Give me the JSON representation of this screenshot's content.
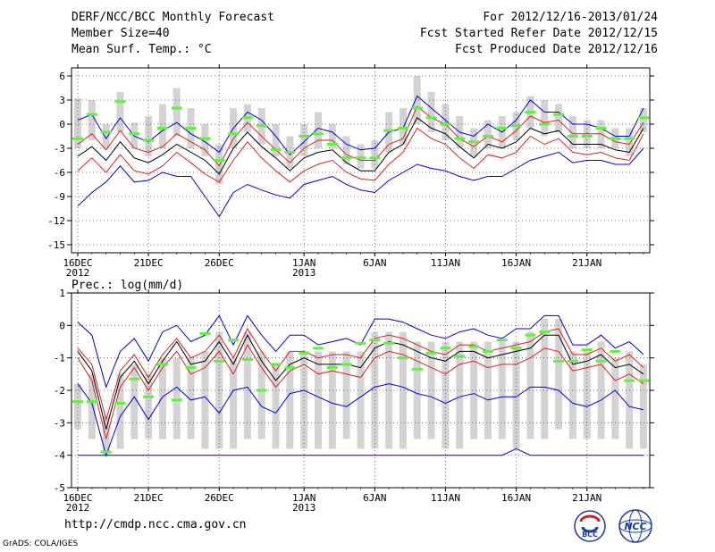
{
  "header": {
    "left": [
      "DERF/NCC/BCC Monthly Forecast",
      "Member Size=40",
      "Mean Surf. Temp.: °C"
    ],
    "right": [
      "For 2012/12/16-2013/01/24",
      "Fcst Started Refer Date 2012/12/15",
      "Fcst Produced Date 2012/12/16"
    ]
  },
  "footer": {
    "url": "http://cmdp.ncc.cma.gov.cn",
    "credit": "GrADS: COLA/IGES",
    "logo_left_label": "BCC",
    "logo_right_label": "NCC"
  },
  "colors": {
    "mean": "#000000",
    "spread": "#dd2222",
    "extreme": "#0000dd",
    "box": "#d3d3d3",
    "obs": "#66ee44"
  },
  "chart_data": [
    {
      "type": "line",
      "title": "Mean Surf. Temp.: °C",
      "ylim": [
        -16,
        7
      ],
      "yticks": [
        6,
        3,
        0,
        -3,
        -6,
        -9,
        -12,
        -15
      ],
      "xticks": [
        {
          "day": 0,
          "label": "16DEC",
          "sub": "2012"
        },
        {
          "day": 5,
          "label": "21DEC",
          "sub": ""
        },
        {
          "day": 10,
          "label": "26DEC",
          "sub": ""
        },
        {
          "day": 16,
          "label": "1JAN",
          "sub": "2013"
        },
        {
          "day": 21,
          "label": "6JAN",
          "sub": ""
        },
        {
          "day": 26,
          "label": "11JAN",
          "sub": ""
        },
        {
          "day": 31,
          "label": "16JAN",
          "sub": ""
        },
        {
          "day": 36,
          "label": "21JAN",
          "sub": ""
        }
      ],
      "series": [
        {
          "name": "max",
          "values": [
            0.5,
            1.2,
            -1.8,
            0.8,
            -1.5,
            -2.2,
            -0.8,
            0.2,
            -1.2,
            -2.2,
            -3.5,
            -0.5,
            1.5,
            0.5,
            -1.5,
            -3.8,
            -2.2,
            -0.5,
            -1.0,
            -2.5,
            -3.2,
            -3.0,
            -1.0,
            -0.5,
            3.5,
            2.0,
            0.5,
            -1.0,
            -1.5,
            0.0,
            -1.0,
            0.5,
            3.0,
            1.5,
            1.5,
            0.0,
            0.0,
            -0.5,
            -1.5,
            -1.5,
            2.0
          ]
        },
        {
          "name": "upper",
          "values": [
            -2.5,
            -1.2,
            -3.2,
            -0.8,
            -3.0,
            -3.5,
            -2.8,
            -1.2,
            -2.2,
            -3.2,
            -5.2,
            -1.8,
            0.2,
            -1.5,
            -3.2,
            -4.8,
            -3.0,
            -2.0,
            -2.0,
            -3.8,
            -4.5,
            -4.5,
            -2.5,
            -1.8,
            2.2,
            0.8,
            0.0,
            -1.8,
            -2.8,
            -1.5,
            -2.2,
            -0.8,
            1.0,
            0.2,
            0.5,
            -1.2,
            -1.2,
            -1.2,
            -2.2,
            -2.5,
            0.2
          ]
        },
        {
          "name": "mean",
          "values": [
            -4.0,
            -2.8,
            -4.5,
            -2.2,
            -4.2,
            -4.8,
            -3.8,
            -2.5,
            -3.5,
            -4.5,
            -6.2,
            -3.0,
            -1.0,
            -2.8,
            -4.2,
            -5.8,
            -4.2,
            -3.5,
            -3.2,
            -4.8,
            -5.8,
            -5.8,
            -3.5,
            -2.5,
            0.8,
            -0.5,
            -1.2,
            -2.8,
            -4.2,
            -2.5,
            -3.0,
            -2.2,
            -0.5,
            -1.2,
            -0.8,
            -2.5,
            -2.5,
            -2.5,
            -3.2,
            -3.5,
            -0.5
          ]
        },
        {
          "name": "lower",
          "values": [
            -5.8,
            -4.2,
            -6.0,
            -3.8,
            -5.8,
            -6.2,
            -5.2,
            -3.5,
            -4.8,
            -6.2,
            -7.2,
            -4.5,
            -2.2,
            -4.2,
            -5.8,
            -7.2,
            -5.8,
            -5.0,
            -4.5,
            -6.0,
            -6.8,
            -7.0,
            -5.0,
            -3.5,
            -0.5,
            -1.8,
            -2.5,
            -4.2,
            -5.5,
            -3.8,
            -4.2,
            -3.5,
            -1.5,
            -2.5,
            -1.8,
            -3.5,
            -3.8,
            -3.5,
            -4.2,
            -4.5,
            -1.2
          ]
        },
        {
          "name": "min",
          "values": [
            -10.2,
            -8.5,
            -7.2,
            -5.2,
            -7.2,
            -7.0,
            -6.0,
            -6.5,
            -6.5,
            -9.0,
            -11.5,
            -8.5,
            -7.5,
            -8.2,
            -8.8,
            -9.2,
            -7.5,
            -7.0,
            -6.5,
            -7.5,
            -8.2,
            -8.5,
            -7.0,
            -6.0,
            -5.0,
            -5.5,
            -5.8,
            -6.5,
            -7.0,
            -6.5,
            -6.5,
            -5.5,
            -4.5,
            -4.0,
            -3.5,
            -4.8,
            -4.5,
            -4.5,
            -5.0,
            -5.0,
            -3.0
          ]
        }
      ],
      "spread_box": [
        [
          -3,
          3.2
        ],
        [
          -2,
          3
        ],
        [
          -3,
          0
        ],
        [
          -1,
          4
        ],
        [
          -3,
          0.2
        ],
        [
          -4,
          1
        ],
        [
          -3,
          2.5
        ],
        [
          -1.5,
          4.5
        ],
        [
          -3,
          2
        ],
        [
          -4,
          0
        ],
        [
          -7.5,
          -2.5
        ],
        [
          -3,
          2
        ],
        [
          -1,
          2.5
        ],
        [
          -2.5,
          2
        ],
        [
          -4,
          0
        ],
        [
          -5.5,
          -1.5
        ],
        [
          -4,
          0
        ],
        [
          -3,
          1.5
        ],
        [
          -3,
          0
        ],
        [
          -5,
          -1.5
        ],
        [
          -5.5,
          -2.5
        ],
        [
          -5.5,
          -2
        ],
        [
          -3.5,
          1.5
        ],
        [
          -2.5,
          2
        ],
        [
          0,
          6
        ],
        [
          -1,
          4
        ],
        [
          -2,
          2.5
        ],
        [
          -3,
          1
        ],
        [
          -4,
          -0.5
        ],
        [
          -3,
          0.5
        ],
        [
          -3,
          1
        ],
        [
          -2,
          1.5
        ],
        [
          -0.5,
          3.5
        ],
        [
          -1.5,
          3
        ],
        [
          -1,
          2.5
        ],
        [
          -3,
          1
        ],
        [
          -3,
          0.5
        ],
        [
          -3,
          0.5
        ],
        [
          -3,
          -0.5
        ],
        [
          -4,
          -0.5
        ],
        [
          -1,
          2
        ]
      ],
      "observed": [
        -1.8,
        1.2,
        -1.0,
        2.8,
        -1.2,
        -2.0,
        -0.5,
        2.0,
        -0.5,
        -1.8,
        -4.5,
        -1.2,
        0.8,
        -0.2,
        -3.2,
        -3.5,
        -1.5,
        -1.2,
        -2.5,
        -4.2,
        -4.2,
        -4.2,
        -0.8,
        -0.5,
        2.0,
        0.8,
        0.0,
        -1.8,
        -2.2,
        -1.5,
        -0.5,
        -0.2,
        1.5,
        0.0,
        1.2,
        -1.5,
        -1.5,
        -0.5,
        -1.8,
        -1.8,
        0.8
      ]
    },
    {
      "type": "line",
      "title": "Prec.: log(mm/d)",
      "ylim": [
        -5,
        1
      ],
      "yticks": [
        1,
        0,
        -1,
        -2,
        -3,
        -4,
        -5
      ],
      "xticks": [
        {
          "day": 0,
          "label": "16DEC",
          "sub": "2012"
        },
        {
          "day": 5,
          "label": "21DEC",
          "sub": ""
        },
        {
          "day": 10,
          "label": "26DEC",
          "sub": ""
        },
        {
          "day": 16,
          "label": "1JAN",
          "sub": "2013"
        },
        {
          "day": 21,
          "label": "6JAN",
          "sub": ""
        },
        {
          "day": 26,
          "label": "11JAN",
          "sub": ""
        },
        {
          "day": 31,
          "label": "16JAN",
          "sub": ""
        },
        {
          "day": 36,
          "label": "21JAN",
          "sub": ""
        }
      ],
      "series": [
        {
          "name": "max",
          "values": [
            0.1,
            -0.3,
            -1.9,
            -0.8,
            -0.4,
            -1.1,
            -0.2,
            0.0,
            -0.5,
            -0.3,
            0.3,
            -0.6,
            0.3,
            -0.3,
            -0.8,
            -0.3,
            -0.3,
            -0.6,
            -0.5,
            -0.4,
            -0.6,
            0.2,
            0.2,
            0.1,
            -0.1,
            -0.3,
            -0.4,
            -0.2,
            -0.1,
            -0.3,
            -0.4,
            -0.1,
            -0.1,
            0.3,
            0.3,
            -0.6,
            -0.6,
            -0.3,
            -0.7,
            -0.5,
            -0.9
          ]
        },
        {
          "name": "upper",
          "values": [
            -0.7,
            -1.2,
            -2.9,
            -1.4,
            -0.9,
            -1.6,
            -0.9,
            -0.4,
            -1.0,
            -0.8,
            -0.3,
            -1.0,
            -0.1,
            -0.8,
            -1.4,
            -0.8,
            -0.8,
            -1.0,
            -0.9,
            -0.9,
            -1.0,
            -0.4,
            -0.3,
            -0.4,
            -0.6,
            -0.8,
            -0.9,
            -0.6,
            -0.6,
            -0.8,
            -0.7,
            -0.6,
            -0.5,
            -0.2,
            -0.1,
            -0.9,
            -0.9,
            -0.7,
            -1.1,
            -0.9,
            -1.3
          ]
        },
        {
          "name": "mean",
          "values": [
            -0.8,
            -1.4,
            -3.2,
            -1.6,
            -1.1,
            -1.8,
            -1.1,
            -0.5,
            -1.2,
            -1.1,
            -0.5,
            -1.2,
            -0.3,
            -1.1,
            -1.7,
            -1.2,
            -1.0,
            -1.2,
            -1.2,
            -1.2,
            -1.3,
            -0.7,
            -0.5,
            -0.6,
            -0.8,
            -1.0,
            -1.1,
            -0.8,
            -0.8,
            -1.0,
            -0.9,
            -0.8,
            -0.7,
            -0.3,
            -0.3,
            -1.2,
            -1.1,
            -0.9,
            -1.3,
            -1.2,
            -1.5
          ]
        },
        {
          "name": "lower",
          "values": [
            -1.0,
            -1.7,
            -3.5,
            -1.9,
            -1.3,
            -2.0,
            -1.3,
            -0.8,
            -1.5,
            -1.3,
            -0.8,
            -1.5,
            -0.6,
            -1.3,
            -1.9,
            -1.4,
            -1.2,
            -1.5,
            -1.4,
            -1.5,
            -1.6,
            -1.0,
            -0.8,
            -0.9,
            -1.1,
            -1.3,
            -1.5,
            -1.2,
            -1.1,
            -1.3,
            -1.2,
            -1.2,
            -1.0,
            -0.7,
            -0.8,
            -1.4,
            -1.3,
            -1.2,
            -1.7,
            -1.5,
            -1.8
          ]
        },
        {
          "name": "min",
          "values": [
            -1.8,
            -2.4,
            -4.0,
            -2.8,
            -2.2,
            -2.9,
            -2.2,
            -1.9,
            -2.3,
            -2.2,
            -2.7,
            -2.0,
            -1.9,
            -2.5,
            -2.7,
            -2.1,
            -2.0,
            -2.2,
            -2.4,
            -2.5,
            -2.2,
            -1.9,
            -1.8,
            -1.9,
            -2.1,
            -2.2,
            -2.4,
            -2.2,
            -2.1,
            -2.3,
            -2.2,
            -2.2,
            -1.9,
            -1.9,
            -2.0,
            -2.4,
            -2.5,
            -2.3,
            -2.0,
            -2.5,
            -2.6
          ]
        },
        {
          "name": "floor",
          "values": [
            -4,
            -4,
            -4,
            -4,
            -4,
            -4,
            -4,
            -4,
            -4,
            -4,
            -4,
            -4,
            -4,
            -4,
            -4,
            -4,
            -4,
            -4,
            -4,
            -4,
            -4,
            -4,
            -4,
            -4,
            -4,
            -4,
            -4,
            -4,
            -4,
            -4,
            -4,
            -3.8,
            -4,
            -4,
            -4,
            -4,
            -4,
            -4,
            -4,
            -4,
            -4
          ]
        }
      ],
      "spread_box": [
        [
          -3.2,
          -1.8
        ],
        [
          -3.5,
          -1.5
        ],
        [
          -4,
          -2.8
        ],
        [
          -3.8,
          -1.5
        ],
        [
          -3.5,
          -1.2
        ],
        [
          -3.5,
          -1.5
        ],
        [
          -3.5,
          -1.0
        ],
        [
          -3.5,
          -1.0
        ],
        [
          -3.5,
          -1.0
        ],
        [
          -3.8,
          -0.8
        ],
        [
          -3.8,
          -0.2
        ],
        [
          -3.8,
          -1.0
        ],
        [
          -3.5,
          -0.2
        ],
        [
          -3.5,
          -0.8
        ],
        [
          -3.8,
          -1.2
        ],
        [
          -3.8,
          -0.8
        ],
        [
          -3.8,
          -0.8
        ],
        [
          -3.8,
          -0.8
        ],
        [
          -3.8,
          -0.8
        ],
        [
          -3.5,
          -0.8
        ],
        [
          -3.8,
          -0.8
        ],
        [
          -3.8,
          -0.2
        ],
        [
          -3.8,
          -0.2
        ],
        [
          -3.8,
          -0.2
        ],
        [
          -3.5,
          -0.5
        ],
        [
          -3.5,
          -0.5
        ],
        [
          -3.8,
          -0.5
        ],
        [
          -3.8,
          -0.5
        ],
        [
          -3.5,
          -0.5
        ],
        [
          -3.5,
          -0.5
        ],
        [
          -3.5,
          -0.5
        ],
        [
          -3.8,
          -0.5
        ],
        [
          -3.5,
          -0.2
        ],
        [
          -3.5,
          0.2
        ],
        [
          -3.2,
          0.2
        ],
        [
          -3.5,
          -0.8
        ],
        [
          -3.5,
          -0.8
        ],
        [
          -3.5,
          -0.5
        ],
        [
          -3.5,
          -1.0
        ],
        [
          -3.8,
          -0.8
        ],
        [
          -3.8,
          -1.2
        ]
      ],
      "observed": [
        -2.35,
        -2.35,
        -3.9,
        -2.4,
        -1.65,
        -2.2,
        -1.2,
        -2.3,
        -1.3,
        -0.25,
        -1.1,
        -0.45,
        -1.05,
        -2.0,
        -1.2,
        -1.3,
        -0.85,
        -0.7,
        -1.3,
        -1.2,
        -0.55,
        -0.45,
        -0.55,
        -1.0,
        -1.35,
        -0.85,
        -0.7,
        -0.95,
        -0.65,
        -0.8,
        -0.45,
        -0.7,
        -0.3,
        -0.2,
        -1.1,
        -1.1,
        -0.75,
        -1.1,
        -0.8,
        -1.7,
        -1.7
      ]
    }
  ]
}
